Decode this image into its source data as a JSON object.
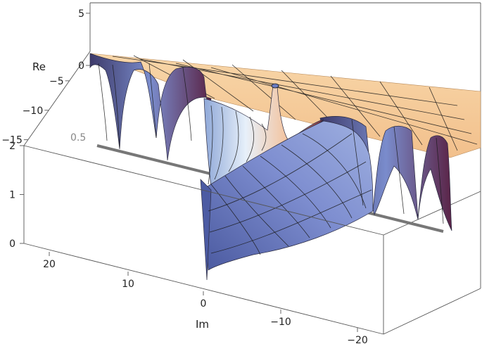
{
  "chart_data": {
    "type": "surface3d",
    "title": "",
    "axes": {
      "re": {
        "label": "Re",
        "ticks": [
          5,
          0,
          -5,
          -10,
          -15
        ],
        "tick_labels": [
          "5",
          "0",
          "−5",
          "−10",
          "−15"
        ],
        "range": [
          -16,
          6
        ]
      },
      "im": {
        "label": "Im",
        "ticks": [
          20,
          10,
          0,
          -10,
          -20
        ],
        "tick_labels": [
          "20",
          "10",
          "0",
          "−10",
          "−20"
        ],
        "range": [
          25,
          -25
        ]
      },
      "z": {
        "label": "",
        "ticks": [
          0,
          1,
          2
        ],
        "tick_labels": [
          "0",
          "1",
          "2"
        ],
        "range": [
          0,
          2
        ]
      }
    },
    "reference_line": {
      "z": 0.5,
      "label": "0.5",
      "color": "#777777"
    },
    "surface": {
      "plateau_color": "#f6c993",
      "mid_color": "#6f7fc0",
      "dark_color": "#5a1f38",
      "light_color": "#e9f1fb",
      "back_ridge_dips_im": [
        22,
        14,
        7,
        -9,
        -14,
        -18,
        -22
      ],
      "central_spike_im": -3,
      "description_points": [
        {
          "im": 25,
          "z": 2
        },
        {
          "im": 0,
          "z": 0
        },
        {
          "im": -10,
          "z": 1.0
        },
        {
          "im": -25,
          "z": 2
        }
      ]
    },
    "grid": false,
    "legend": "none"
  }
}
